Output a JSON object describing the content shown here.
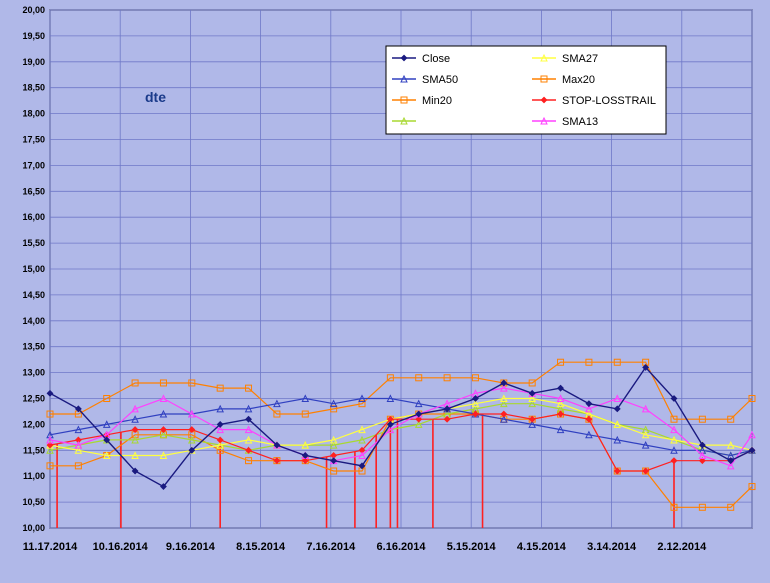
{
  "colors": {
    "background": "#b0b8e8",
    "plot_bg": "#b0b8e8",
    "grid": "#6f78c8",
    "close": "#1a1a80",
    "sma27": "#ffff40",
    "sma50": "#3040c0",
    "max20": "#ff8000",
    "min20": "#ff8000",
    "stop": "#ff2020",
    "sma13": "#ff40ff",
    "green": "#a8d830"
  },
  "chart_data": {
    "type": "line",
    "title": "dte",
    "xlabel": "",
    "ylabel": "",
    "ylim": [
      10.0,
      20.0
    ],
    "y_ticks": [
      "10,00",
      "10,50",
      "11,00",
      "11,50",
      "12,00",
      "12,50",
      "13,00",
      "13,50",
      "14,00",
      "14,50",
      "15,00",
      "15,50",
      "16,00",
      "16,50",
      "17,00",
      "17,50",
      "18,00",
      "18,50",
      "19,00",
      "19,50",
      "20,00"
    ],
    "x_tick_labels": [
      "11.17.2014",
      "10.16.2014",
      "9.16.2014",
      "8.15.2014",
      "7.16.2014",
      "6.16.2014",
      "5.15.2014",
      "4.15.2014",
      "3.14.2014",
      "2.12.2014"
    ],
    "x_count": 100,
    "grid": true,
    "legend_position": "top-right",
    "x_index": [
      0,
      4,
      8,
      12,
      16,
      20,
      24,
      28,
      32,
      36,
      40,
      44,
      48,
      52,
      56,
      60,
      64,
      68,
      72,
      76,
      80,
      84,
      88,
      92,
      96,
      99
    ],
    "series": [
      {
        "name": "Close",
        "key": "close",
        "marker": "diamond",
        "values": [
          12.6,
          12.3,
          11.7,
          11.1,
          10.8,
          11.5,
          12.0,
          12.1,
          11.6,
          11.4,
          11.3,
          11.2,
          12.0,
          12.2,
          12.3,
          12.5,
          12.8,
          12.6,
          12.7,
          12.4,
          12.3,
          13.1,
          12.5,
          11.6,
          11.3,
          11.5
        ]
      },
      {
        "name": "SMA27",
        "key": "sma27",
        "marker": "triangle",
        "values": [
          11.6,
          11.5,
          11.4,
          11.4,
          11.4,
          11.5,
          11.6,
          11.7,
          11.6,
          11.6,
          11.7,
          11.9,
          12.1,
          12.2,
          12.3,
          12.4,
          12.5,
          12.5,
          12.4,
          12.2,
          12.0,
          11.8,
          11.7,
          11.6,
          11.6,
          11.5
        ]
      },
      {
        "name": "SMA50",
        "key": "sma50",
        "marker": "triangle",
        "values": [
          11.8,
          11.9,
          12.0,
          12.1,
          12.2,
          12.2,
          12.3,
          12.3,
          12.4,
          12.5,
          12.4,
          12.5,
          12.5,
          12.4,
          12.3,
          12.2,
          12.1,
          12.0,
          11.9,
          11.8,
          11.7,
          11.6,
          11.5,
          11.5,
          11.4,
          11.5
        ]
      },
      {
        "name": "Max20",
        "key": "max20",
        "marker": "square",
        "values": [
          12.2,
          12.2,
          12.5,
          12.8,
          12.8,
          12.8,
          12.7,
          12.7,
          12.2,
          12.2,
          12.3,
          12.4,
          12.9,
          12.9,
          12.9,
          12.9,
          12.8,
          12.8,
          13.2,
          13.2,
          13.2,
          13.2,
          12.1,
          12.1,
          12.1,
          12.5
        ]
      },
      {
        "name": "Min20",
        "key": "min20",
        "marker": "square",
        "values": [
          11.2,
          11.2,
          11.4,
          11.8,
          11.8,
          11.8,
          11.5,
          11.3,
          11.3,
          11.3,
          11.1,
          11.1,
          12.1,
          12.2,
          12.2,
          12.2,
          12.1,
          12.1,
          12.2,
          12.1,
          11.1,
          11.1,
          10.4,
          10.4,
          10.4,
          10.8
        ]
      },
      {
        "name": "STOP-LOSSTRAIL",
        "key": "stop",
        "marker": "diamond",
        "values": [
          11.6,
          11.7,
          11.8,
          11.9,
          11.9,
          11.9,
          11.7,
          11.5,
          11.3,
          11.3,
          11.4,
          11.5,
          12.1,
          12.1,
          12.1,
          12.2,
          12.2,
          12.1,
          12.2,
          12.1,
          11.1,
          11.1,
          11.3,
          11.3,
          11.3,
          11.5
        ]
      },
      {
        "name": "",
        "key": "green",
        "marker": "triangle",
        "values": [
          11.5,
          11.6,
          11.7,
          11.7,
          11.8,
          11.7,
          11.6,
          11.5,
          11.6,
          11.6,
          11.6,
          11.7,
          11.9,
          12.0,
          12.2,
          12.3,
          12.4,
          12.4,
          12.3,
          12.2,
          12.0,
          11.9,
          11.7,
          11.5,
          11.4,
          11.5
        ]
      },
      {
        "name": "SMA13",
        "key": "sma13",
        "marker": "triangle",
        "values": [
          11.7,
          11.6,
          11.8,
          12.3,
          12.5,
          12.2,
          11.9,
          11.9,
          11.6,
          11.4,
          11.3,
          11.4,
          11.9,
          12.2,
          12.4,
          12.6,
          12.7,
          12.6,
          12.5,
          12.3,
          12.5,
          12.3,
          11.9,
          11.4,
          11.2,
          11.8
        ]
      }
    ],
    "stop_spikes": [
      1,
      10,
      24,
      39,
      43,
      46,
      48,
      49,
      54,
      61,
      88
    ],
    "legend": [
      {
        "label": "Close",
        "key": "close",
        "marker": "diamond"
      },
      {
        "label": "SMA27",
        "key": "sma27",
        "marker": "triangle"
      },
      {
        "label": "SMA50",
        "key": "sma50",
        "marker": "triangle"
      },
      {
        "label": "Max20",
        "key": "max20",
        "marker": "square"
      },
      {
        "label": "Min20",
        "key": "min20",
        "marker": "square"
      },
      {
        "label": "STOP-LOSSTRAIL",
        "key": "stop",
        "marker": "diamond"
      },
      {
        "label": "",
        "key": "green",
        "marker": "triangle"
      },
      {
        "label": "SMA13",
        "key": "sma13",
        "marker": "triangle"
      }
    ]
  }
}
